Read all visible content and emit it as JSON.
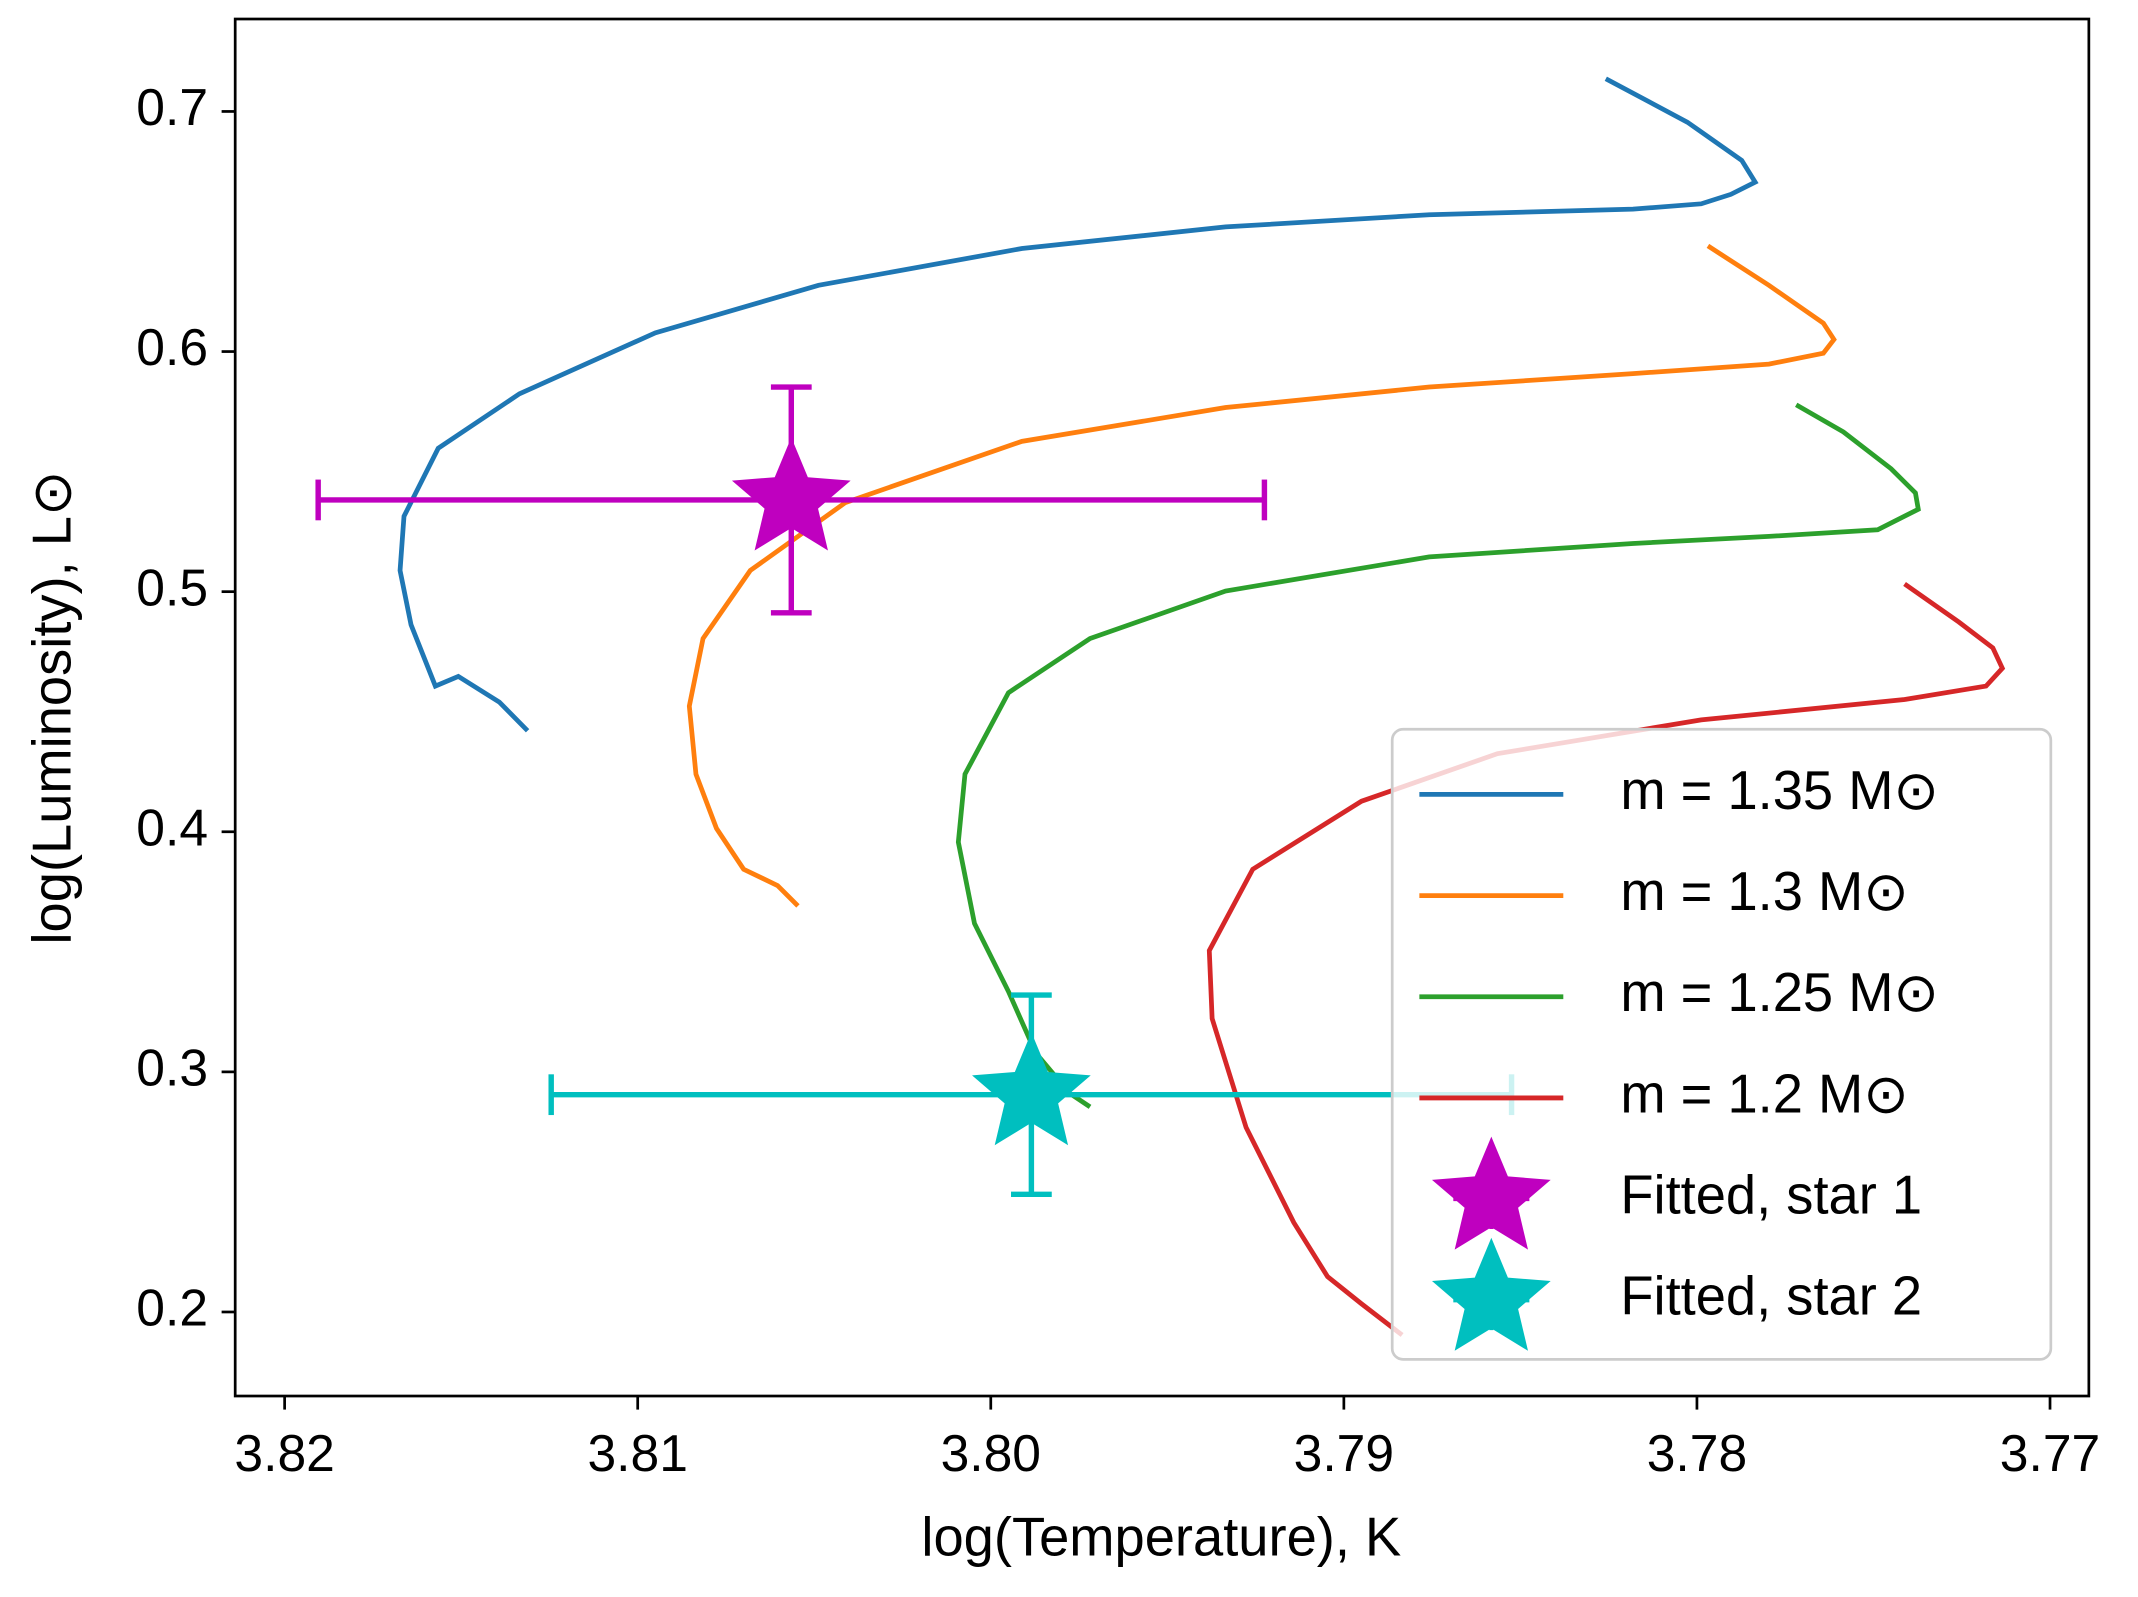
{
  "chart_data": {
    "type": "line",
    "xlabel": "log(Temperature), K",
    "ylabel": "log(Luminosity), L⊙",
    "xlim": [
      3.8214,
      3.7689
    ],
    "ylim": [
      0.165,
      0.7385
    ],
    "xticks": [
      3.82,
      3.81,
      {
        "value": 3.8,
        "label": "3.80"
      },
      3.79,
      3.78,
      3.77
    ],
    "yticks": [
      0.2,
      0.3,
      0.4,
      0.5,
      0.6,
      0.7
    ],
    "legend": "lower right",
    "series": [
      {
        "name": "m = 1.35 M⊙",
        "color": "#1f77b4",
        "x": [
          3.81312,
          3.81392,
          3.81508,
          3.81573,
          3.81642,
          3.81673,
          3.81662,
          3.81565,
          3.81335,
          3.8095,
          3.80488,
          3.79912,
          3.79335,
          3.78758,
          3.78181,
          3.77988,
          3.77904,
          3.77835,
          3.77873,
          3.78027,
          3.78258
        ],
        "values": [
          0.4421,
          0.454,
          0.4647,
          0.4607,
          0.4862,
          0.5088,
          0.5314,
          0.5597,
          0.5824,
          0.6078,
          0.6276,
          0.6429,
          0.6519,
          0.657,
          0.6593,
          0.6615,
          0.6655,
          0.6706,
          0.6796,
          0.6955,
          0.7136
        ]
      },
      {
        "name": "m = 1.3 M⊙",
        "color": "#ff7f0e",
        "x": [
          3.80546,
          3.80604,
          3.807,
          3.80777,
          3.80835,
          3.80854,
          3.80815,
          3.80681,
          3.80412,
          3.79912,
          3.79335,
          3.78758,
          3.78181,
          3.77796,
          3.77642,
          3.77612,
          3.77642,
          3.77796,
          3.77969
        ],
        "values": [
          0.3691,
          0.3776,
          0.3844,
          0.4014,
          0.424,
          0.4523,
          0.4805,
          0.5088,
          0.5371,
          0.5626,
          0.5767,
          0.5852,
          0.5908,
          0.5948,
          0.5993,
          0.605,
          0.6118,
          0.6276,
          0.644
        ]
      },
      {
        "name": "m = 1.25 M⊙",
        "color": "#2ca02c",
        "x": [
          3.79719,
          3.79777,
          3.79873,
          3.7995,
          3.80046,
          3.80092,
          3.80073,
          3.7995,
          3.79719,
          3.79335,
          3.78758,
          3.78181,
          3.77796,
          3.77488,
          3.77373,
          3.77381,
          3.7745,
          3.77585,
          3.77719
        ],
        "values": [
          0.2854,
          0.2911,
          0.308,
          0.3335,
          0.3618,
          0.3957,
          0.424,
          0.4579,
          0.4805,
          0.5003,
          0.5145,
          0.5201,
          0.523,
          0.5258,
          0.5343,
          0.5411,
          0.5512,
          0.5665,
          0.5778
        ]
      },
      {
        "name": "m = 1.2 M⊙",
        "color": "#d62728",
        "x": [
          3.78835,
          3.7895,
          3.79046,
          3.79142,
          3.79277,
          3.79373,
          3.79381,
          3.79258,
          3.7895,
          3.78565,
          3.77988,
          3.77412,
          3.77181,
          3.77135,
          3.77162,
          3.77258,
          3.77412
        ],
        "values": [
          0.1904,
          0.2034,
          0.2147,
          0.2373,
          0.2769,
          0.3222,
          0.3505,
          0.3844,
          0.4127,
          0.4325,
          0.4466,
          0.4551,
          0.4607,
          0.4681,
          0.4766,
          0.4873,
          0.5032
        ]
      },
      {
        "name": "Fitted, star 1",
        "color": "#bf00bf",
        "marker": "star",
        "x": [
          3.80565
        ],
        "values": [
          0.5382
        ],
        "xerr": [
          0.0134
        ],
        "yerr": [
          0.047
        ]
      },
      {
        "name": "Fitted, star 2",
        "color": "#00bfbf",
        "marker": "star",
        "x": [
          3.79885
        ],
        "values": [
          0.2905
        ],
        "xerr": [
          0.0136
        ],
        "yerr": [
          0.0415
        ]
      }
    ]
  }
}
